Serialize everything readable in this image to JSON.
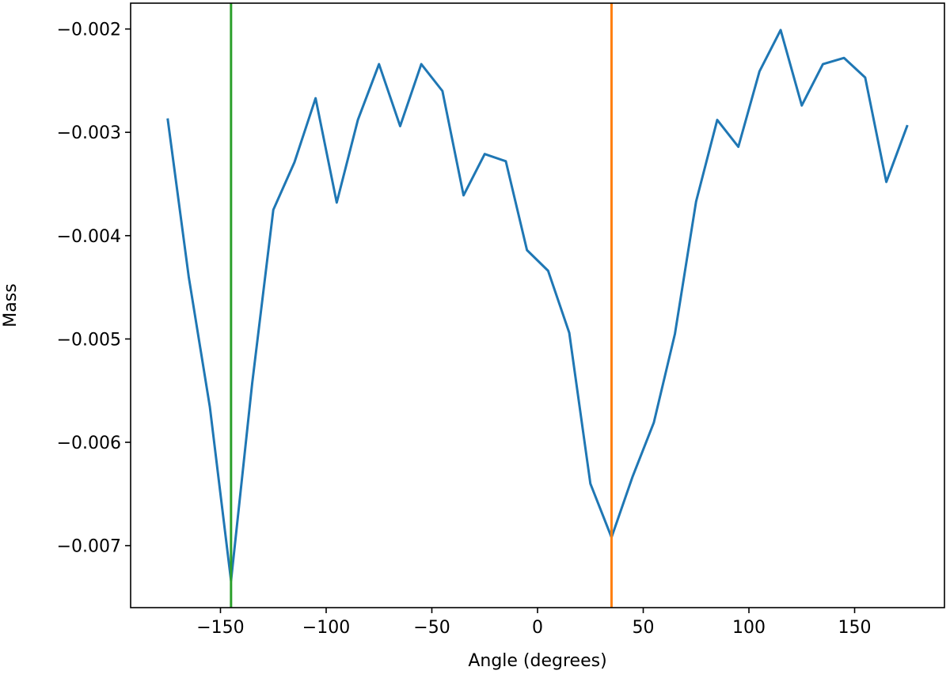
{
  "chart_data": {
    "type": "line",
    "x_label": "Angle (degrees)",
    "y_label": "Mass",
    "x": [
      -175,
      -165,
      -155,
      -145,
      -135,
      -125,
      -115,
      -105,
      -95,
      -85,
      -75,
      -65,
      -55,
      -45,
      -35,
      -25,
      -15,
      -5,
      5,
      15,
      25,
      35,
      45,
      55,
      65,
      75,
      85,
      95,
      105,
      115,
      125,
      135,
      145,
      155,
      165,
      175
    ],
    "series": [
      {
        "color": "#1f77b4",
        "values": [
          -0.002865,
          -0.0044,
          -0.00566,
          -0.00734,
          -0.00543,
          -0.00375,
          -0.00329,
          -0.00267,
          -0.00368,
          -0.00288,
          -0.00234,
          -0.00294,
          -0.00234,
          -0.0026,
          -0.00361,
          -0.00321,
          -0.00328,
          -0.00414,
          -0.00434,
          -0.00494,
          -0.0064,
          -0.00692,
          -0.00633,
          -0.00581,
          -0.00495,
          -0.00367,
          -0.00288,
          -0.00314,
          -0.00241,
          -0.00201,
          -0.00274,
          -0.00234,
          -0.00228,
          -0.00247,
          -0.00348,
          -0.00293
        ]
      }
    ],
    "vlines": [
      {
        "x": -145,
        "color": "#2ca02c"
      },
      {
        "x": 35,
        "color": "#ff7f0e"
      }
    ],
    "xlim": [
      -192.5,
      192.5
    ],
    "xticks": [
      {
        "value": -150,
        "label": "−150"
      },
      {
        "value": -100,
        "label": "−100"
      },
      {
        "value": -50,
        "label": "−50"
      },
      0,
      50,
      100,
      150
    ],
    "ylim": [
      -0.0076,
      -0.00175
    ],
    "yticks": [
      {
        "value": -0.007,
        "label": "−0.007"
      },
      {
        "value": -0.006,
        "label": "−0.006"
      },
      {
        "value": -0.005,
        "label": "−0.005"
      },
      {
        "value": -0.004,
        "label": "−0.004"
      },
      {
        "value": -0.003,
        "label": "−0.003"
      },
      {
        "value": -0.002,
        "label": "−0.002"
      }
    ]
  }
}
